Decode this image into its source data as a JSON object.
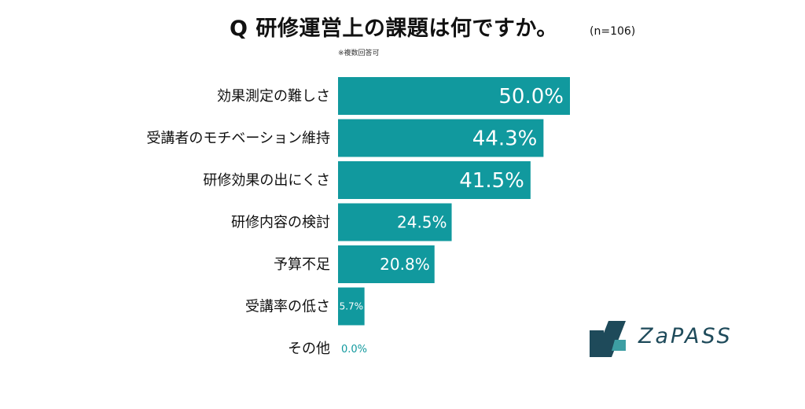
{
  "title": "Q 研修運営上の課題は何ですか。",
  "sample_size": "(n=106)",
  "note": "※複数回答可",
  "brand": {
    "logo_text": "ZaPASS",
    "color": "#1e4a5a"
  },
  "colors": {
    "bar": "#11999e",
    "value_text_inside": "#ffffff",
    "value_text_outside": "#11999e"
  },
  "chart_data": {
    "type": "bar",
    "orientation": "horizontal",
    "title": "Q 研修運営上の課題は何ですか。",
    "categories": [
      "効果測定の難しさ",
      "受講者のモチベーション維持",
      "研修効果の出にくさ",
      "研修内容の検討",
      "予算不足",
      "受講率の低さ",
      "その他"
    ],
    "values": [
      50.0,
      44.3,
      41.5,
      24.5,
      20.8,
      5.7,
      0.0
    ],
    "value_labels": [
      "50.0%",
      "44.3%",
      "41.5%",
      "24.5%",
      "20.8%",
      "5.7%",
      "0.0%"
    ],
    "unit": "%",
    "xlim": [
      0,
      50
    ],
    "grid": false,
    "legend": "none"
  }
}
